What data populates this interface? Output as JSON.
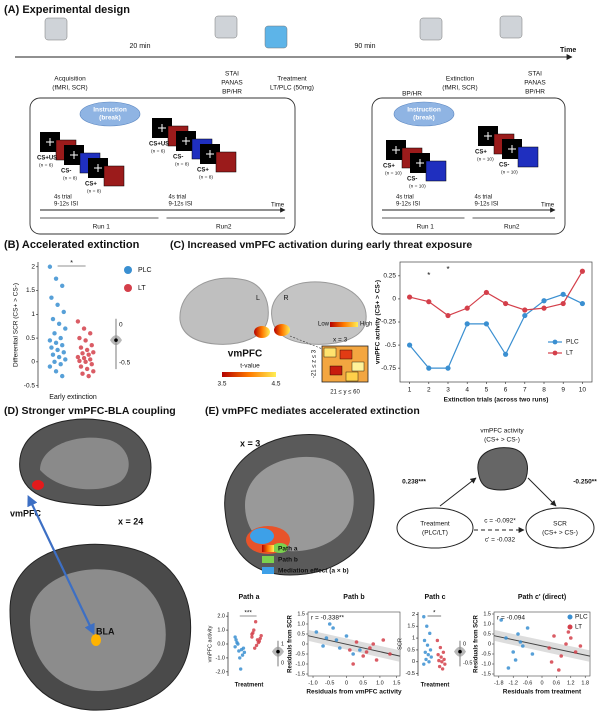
{
  "panel_a": {
    "title": "(A) Experimental design",
    "time": "Time",
    "interval_1": "20 min",
    "interval_2": "90 min",
    "acquisition": [
      "Acquisition",
      "(fMRI, SCR)"
    ],
    "pre_measures": [
      "STAI",
      "PANAS",
      "BP/HR"
    ],
    "treatment": [
      "Treatment",
      "LT/PLC (50mg)"
    ],
    "bp_hr": "BP/HR",
    "extinction": [
      "Extinction",
      "(fMRI, SCR)"
    ],
    "post_measures": [
      "STAI",
      "PANAS",
      "BP/HR"
    ],
    "acq_box": {
      "instruction": [
        "Instruction",
        "(break)"
      ],
      "run1": [
        {
          "label": "CS+US",
          "n": "(n = 6)"
        },
        {
          "label": "CS-",
          "n": "(n = 8)"
        },
        {
          "label": "CS+",
          "n": "(n = 8)"
        }
      ],
      "run2": [
        {
          "label": "CS+US",
          "n": "(n = 6)"
        },
        {
          "label": "CS-",
          "n": "(n = 8)"
        },
        {
          "label": "CS+",
          "n": "(n = 8)"
        }
      ],
      "trial_info": [
        "4s trial",
        "9-12s ISI"
      ],
      "runs": [
        "Run 1",
        "Run2"
      ],
      "time": "Time"
    },
    "ext_box": {
      "instruction": [
        "Instruction",
        "(break)"
      ],
      "run1": [
        {
          "label": "CS+",
          "n": "(n = 10)"
        },
        {
          "label": "CS-",
          "n": "(n = 10)"
        }
      ],
      "run2": [
        {
          "label": "CS+",
          "n": "(n = 10)"
        },
        {
          "label": "CS-",
          "n": "(n = 10)"
        }
      ],
      "trial_info": [
        "4s trial",
        "9-12s ISI"
      ],
      "runs": [
        "Run 1",
        "Run2"
      ],
      "time": "Time"
    }
  },
  "panel_b": {
    "title": "(B) Accelerated extinction",
    "ylabel": "Differential SCR (CS+ > CS-)",
    "xlabel": "Early extinction",
    "ylim": [
      -0.55,
      2.1
    ],
    "yticks": [
      -0.5,
      0,
      0.5,
      1,
      1.5,
      2
    ],
    "significance": "*",
    "effect_ticks": [
      0,
      -0.5
    ],
    "groups": [
      {
        "name": "PLC",
        "color": "#3a8fd1",
        "values": [
          2.0,
          1.75,
          1.6,
          1.35,
          1.2,
          1.05,
          0.9,
          0.8,
          0.7,
          0.6,
          0.5,
          0.45,
          0.4,
          0.35,
          0.3,
          0.25,
          0.2,
          0.15,
          0.1,
          0.05,
          0,
          -0.05,
          -0.1,
          -0.2,
          -0.3
        ]
      },
      {
        "name": "LT",
        "color": "#d43f4a",
        "values": [
          0.85,
          0.7,
          0.6,
          0.5,
          0.45,
          0.35,
          0.3,
          0.25,
          0.2,
          0.18,
          0.15,
          0.1,
          0.08,
          0.05,
          0.02,
          0,
          -0.05,
          -0.1,
          -0.15,
          -0.2,
          -0.25,
          -0.3
        ]
      }
    ]
  },
  "panel_c": {
    "title": "(C) Increased vmPFC activation during early threat exposure",
    "hemispheres": [
      "L",
      "R"
    ],
    "region": "vmPFC",
    "slice": "x = 3",
    "colorbar": [
      "Low",
      "High"
    ],
    "tvalue": "t-value",
    "tvalue_range": [
      3.5,
      4.5
    ],
    "z_range": "-21 ≤ z ≤ 3",
    "y_range": "21 ≤ y ≤ 60",
    "chart": {
      "type": "line",
      "x": [
        1,
        2,
        3,
        4,
        5,
        6,
        7,
        8,
        9,
        10
      ],
      "xlim": [
        0.5,
        10.5
      ],
      "xticks": [
        1,
        2,
        3,
        4,
        5,
        6,
        7,
        8,
        9,
        10
      ],
      "ylim": [
        -0.9,
        0.4
      ],
      "yticks": [
        -0.75,
        -0.5,
        -0.25,
        0,
        0.25
      ],
      "xlabel": "Extinction trials (across two runs)",
      "ylabel": "vmPFC activity (CS+ > CS-)",
      "annotations": [
        "*",
        "*"
      ],
      "series": [
        {
          "name": "PLC",
          "color": "#3a8fd1",
          "values": [
            -0.5,
            -0.75,
            -0.75,
            -0.27,
            -0.27,
            -0.6,
            -0.18,
            -0.02,
            0.05,
            -0.05
          ]
        },
        {
          "name": "LT",
          "color": "#d43f4a",
          "values": [
            0.02,
            -0.03,
            -0.18,
            -0.1,
            0.07,
            -0.05,
            -0.12,
            -0.1,
            -0.05,
            0.3
          ]
        }
      ]
    }
  },
  "panel_d": {
    "title": "(D) Stronger vmPFC-BLA coupling",
    "region_1": "vmPFC",
    "slice": "x = 24",
    "region_2": "BLA"
  },
  "panel_e": {
    "title": "(E) vmPFC mediates accelerated extinction",
    "slice": "x = 3",
    "legend": [
      "Path a",
      "Path b",
      "Mediation effect (a × b)"
    ],
    "mediation": {
      "mediator": [
        "vmPFC activity",
        "(CS+ > CS-)"
      ],
      "predictor": [
        "Treatment",
        "(PLC/LT)"
      ],
      "outcome": [
        "SCR",
        "(CS+ > CS-)"
      ],
      "path_a": "0.238***",
      "path_b": "-0.250**",
      "path_c": "c = -0.092*",
      "path_c_prime": "c' = -0.032"
    },
    "plots": [
      {
        "title": "Path a",
        "kind": "strip",
        "ylabel": "vmPFC activity",
        "xlabel": "Treatment",
        "ylim": [
          -2.3,
          2.3
        ],
        "yticks": [
          {
            "value": -2,
            "label": "-2.0"
          },
          {
            "value": -1,
            "label": "-1.0"
          },
          {
            "value": 0,
            "label": "0.0"
          },
          {
            "value": 1,
            "label": "1.0"
          },
          {
            "value": 2,
            "label": "2.0"
          }
        ],
        "significance": "***",
        "effect_ticks": [
          1,
          0
        ],
        "groups": [
          {
            "color": "#3a8fd1",
            "values": [
              -0.2,
              -0.5,
              -0.8,
              0.3,
              -1.0,
              -0.3,
              0.1,
              -1.8,
              -0.6,
              0.0,
              -0.4,
              0.5
            ]
          },
          {
            "color": "#d43f4a",
            "values": [
              0.5,
              1.6,
              0.2,
              0.8,
              -0.1,
              0.4,
              1.0,
              0.3,
              0.6,
              -0.3,
              0.1,
              0.7
            ]
          }
        ]
      },
      {
        "title": "Path b",
        "kind": "scatter",
        "annotation": "r = -0.338**",
        "ylabel": "Residuals from SCR",
        "xlabel": "Residuals from vmPFC activity",
        "xlim": [
          -1.15,
          1.6
        ],
        "xticks": [
          {
            "value": -1,
            "label": "-1.0"
          },
          -0.5,
          0,
          0.5,
          {
            "value": 1,
            "label": "1.0"
          },
          1.5
        ],
        "ylim": [
          -1.6,
          1.6
        ],
        "yticks": [
          -1.5,
          {
            "value": -1,
            "label": "-1.0"
          },
          -0.5,
          0,
          0.5,
          {
            "value": 1,
            "label": "1.0"
          },
          1.5
        ],
        "groups": [
          {
            "color": "#3a8fd1",
            "x": [
              -0.9,
              -0.6,
              -0.4,
              -0.2,
              0,
              0.2,
              -0.7,
              -0.3,
              0.4,
              -0.5
            ],
            "y": [
              0.6,
              0.3,
              0.8,
              -0.2,
              0.4,
              -0.5,
              -0.1,
              0.2,
              -0.3,
              1.0
            ]
          },
          {
            "color": "#d43f4a",
            "x": [
              0.1,
              0.3,
              0.5,
              0.7,
              0.9,
              1.1,
              0.2,
              0.6,
              0.8,
              1.3
            ],
            "y": [
              -0.3,
              0.1,
              -0.6,
              -0.2,
              -0.8,
              0.2,
              -1.0,
              -0.4,
              0.0,
              -0.5
            ]
          }
        ]
      },
      {
        "title": "Path c",
        "kind": "strip",
        "ylabel": "SCR",
        "xlabel": "Treatment",
        "ylim": [
          -0.6,
          2.1
        ],
        "yticks": [
          -0.5,
          0,
          0.5,
          1,
          1.5,
          2
        ],
        "significance": "*",
        "effect_ticks": [
          0,
          -0.5
        ],
        "groups": [
          {
            "color": "#3a8fd1",
            "values": [
              1.9,
              1.5,
              1.2,
              0.9,
              0.7,
              0.5,
              0.4,
              0.3,
              0.2,
              0.1,
              0,
              -0.1
            ]
          },
          {
            "color": "#d43f4a",
            "values": [
              0.9,
              0.6,
              0.4,
              0.3,
              0.2,
              0.1,
              0.05,
              0,
              -0.1,
              -0.2,
              -0.3
            ]
          }
        ]
      },
      {
        "title": "Path c' (direct)",
        "kind": "scatter",
        "annotation": "r = -0.094",
        "ylabel": "Residuals from SCR",
        "xlabel": "Residuals from treatment",
        "xlim": [
          -2,
          2
        ],
        "xticks": [
          -1.8,
          -1.2,
          -0.6,
          0,
          0.6,
          1.2,
          1.8
        ],
        "ylim": [
          -1.6,
          1.6
        ],
        "yticks": [
          -1.5,
          {
            "value": -1,
            "label": "-1.0"
          },
          -0.5,
          0,
          0.5,
          {
            "value": 1,
            "label": "1.0"
          },
          1.5
        ],
        "groups": [
          {
            "name": "PLC",
            "color": "#3a8fd1",
            "x": [
              -1.7,
              -1.5,
              -1.2,
              -1.0,
              -0.8,
              -0.6,
              -1.4,
              -0.9,
              -0.4,
              -1.1
            ],
            "y": [
              1.2,
              0.3,
              -0.4,
              0.5,
              -0.1,
              0.8,
              -1.2,
              0.1,
              -0.5,
              -0.8
            ]
          },
          {
            "name": "LT",
            "color": "#d43f4a",
            "x": [
              0.3,
              0.5,
              0.8,
              1.0,
              1.2,
              1.4,
              1.6,
              0.7,
              1.1,
              0.4
            ],
            "y": [
              -0.2,
              0.4,
              -0.6,
              0.0,
              0.3,
              -0.4,
              -0.1,
              -1.3,
              0.6,
              -0.9
            ]
          }
        ]
      }
    ]
  }
}
